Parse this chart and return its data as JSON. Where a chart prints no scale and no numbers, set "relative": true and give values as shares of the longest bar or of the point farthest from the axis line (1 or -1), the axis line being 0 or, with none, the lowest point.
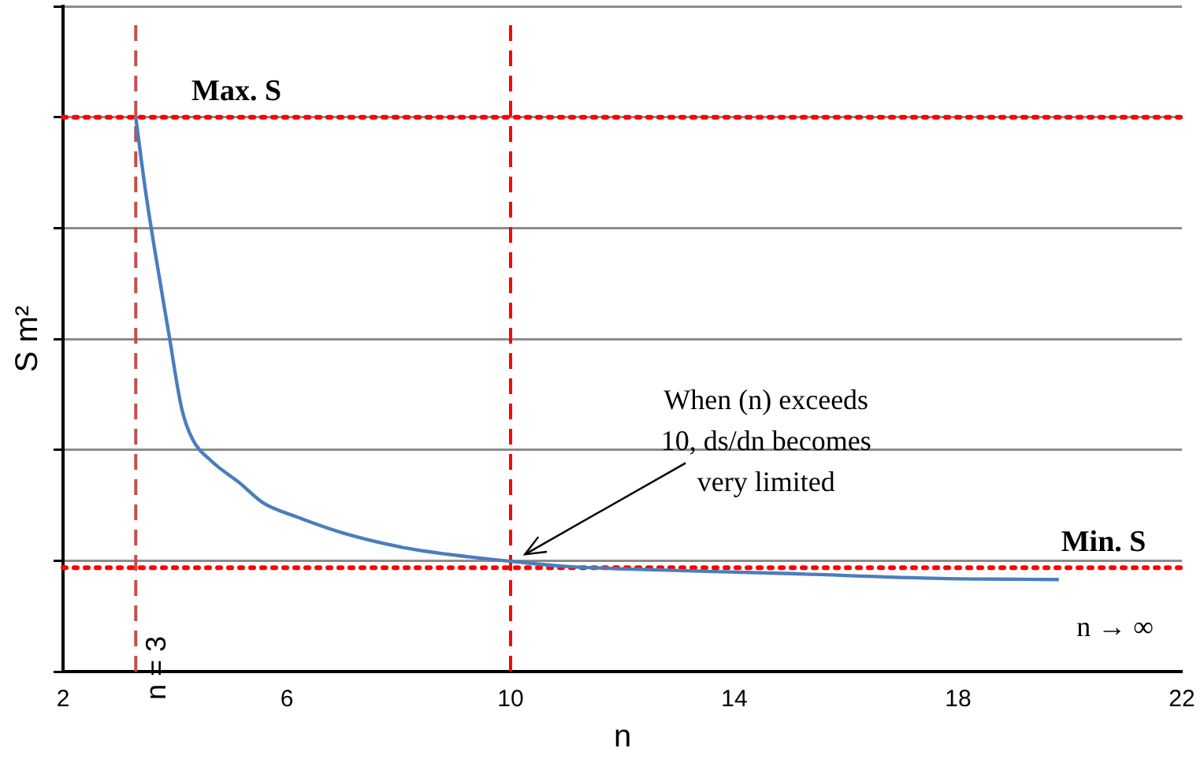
{
  "chart_data": {
    "type": "line",
    "relative": true,
    "xlabel": "n",
    "ylabel": "S m²",
    "x": [
      3.3,
      3.47,
      3.64,
      3.89,
      4.12,
      4.31,
      4.65,
      5.16,
      5.58,
      6.15,
      7.0,
      8.12,
      9.25,
      10.1,
      10.94,
      12.07,
      14.9,
      17.7,
      19.8
    ],
    "series": [
      {
        "color": "#4a7ebb",
        "values": [
          1.0,
          0.87,
          0.76,
          0.61,
          0.475,
          0.42,
          0.38,
          0.34,
          0.304,
          0.28,
          0.25,
          0.223,
          0.207,
          0.198,
          0.19,
          0.185,
          0.177,
          0.168,
          0.166
        ]
      }
    ],
    "xlim": [
      2,
      22
    ],
    "xticks": [
      2,
      6,
      10,
      14,
      18,
      22
    ],
    "grid": "y",
    "legend": false,
    "marker": "none",
    "line_style": "solid",
    "ref_lines": [
      {
        "axis": "x",
        "value": 3.3,
        "label": "n = 3",
        "color": "#c0504d",
        "line_style": "dashed"
      },
      {
        "axis": "x",
        "value": 10,
        "label": null,
        "color": "#ff0000",
        "line_style": "dashed"
      },
      {
        "axis": "y",
        "value": 1.0,
        "label": null,
        "color": "#ff0000",
        "line_style": "dotted"
      },
      {
        "axis": "y",
        "value": 0.1875,
        "label": null,
        "color": "#ff0000",
        "line_style": "dotted"
      }
    ],
    "annotations": [
      {
        "text": "Max. S",
        "x": 5.1,
        "y": 1.0
      },
      {
        "text": "Min. S",
        "x": 20.6,
        "y": 0.1875
      },
      {
        "text": "When (n) exceeds 10, ds/dn becomes very limited",
        "x": 10.2,
        "y": 0.2
      },
      "n → ∞"
    ]
  }
}
